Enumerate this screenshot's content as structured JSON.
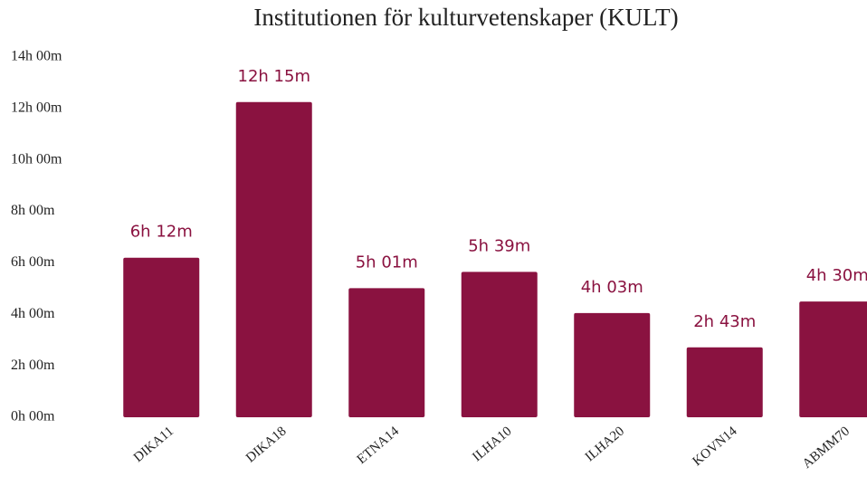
{
  "chart_data": {
    "type": "bar",
    "title": "Institutionen för kulturvetenskaper (KULT)",
    "categories": [
      "DIKA11",
      "DIKA18",
      "ETNA14",
      "ILHA10",
      "ILHA20",
      "KOVN14",
      "ABMM70"
    ],
    "values": [
      6.2,
      12.25,
      5.0167,
      5.65,
      4.05,
      2.7167,
      4.5
    ],
    "value_labels": [
      "6h 12m",
      "12h 15m",
      "5h 01m",
      "5h 39m",
      "4h 03m",
      "2h 43m",
      "4h 30m"
    ],
    "color": "#8a1240",
    "ylim": [
      0,
      14
    ],
    "yticks": [
      {
        "value": 0,
        "label": "0h 00m"
      },
      {
        "value": 2,
        "label": "2h 00m"
      },
      {
        "value": 4,
        "label": "4h 00m"
      },
      {
        "value": 6,
        "label": "6h 00m"
      },
      {
        "value": 8,
        "label": "8h 00m"
      },
      {
        "value": 10,
        "label": "10h 00m"
      },
      {
        "value": 12,
        "label": "12h 00m"
      },
      {
        "value": 14,
        "label": "14h 00m"
      }
    ],
    "grid": false
  }
}
